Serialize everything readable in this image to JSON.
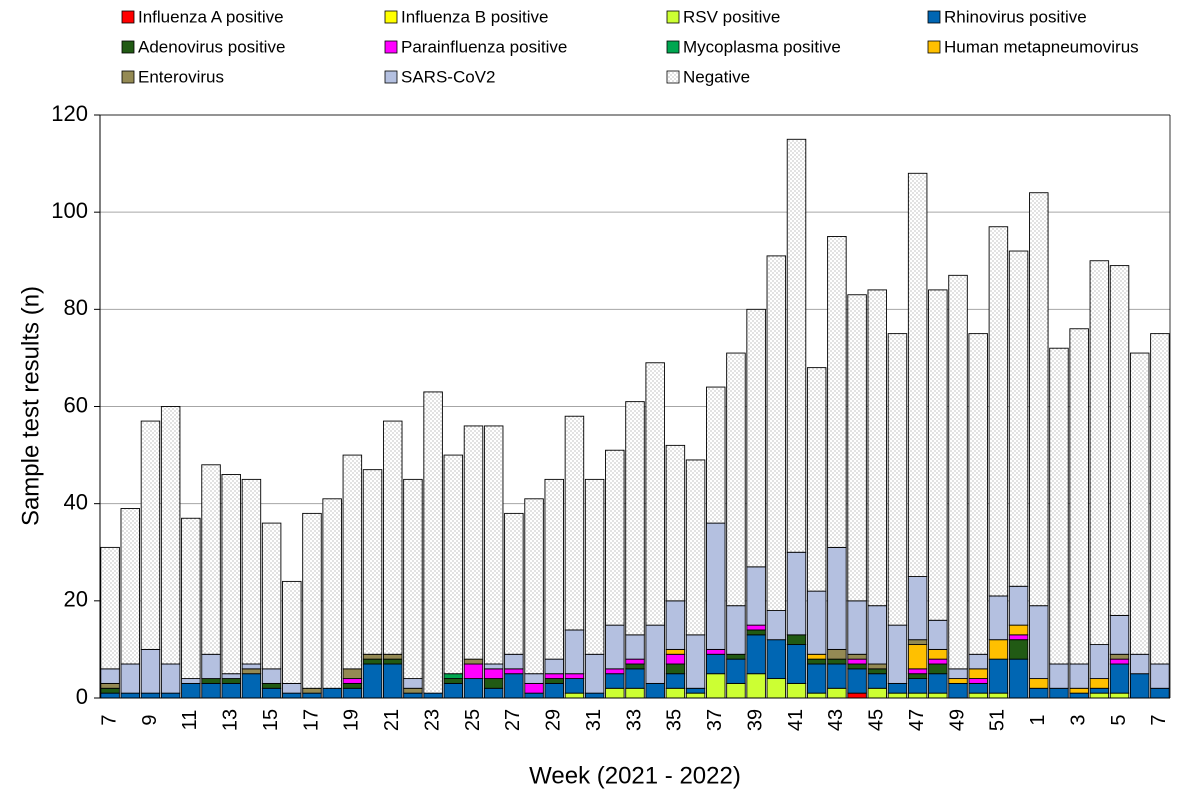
{
  "chart_data": {
    "type": "stacked_bar",
    "x_label": "Week (2021 - 2022)",
    "y_label": "Sample test results (n)",
    "categories": [
      "7",
      null,
      "9",
      null,
      "11",
      null,
      "13",
      null,
      "15",
      null,
      "17",
      null,
      "19",
      null,
      "21",
      null,
      "23",
      null,
      "25",
      null,
      "27",
      null,
      "29",
      null,
      "31",
      null,
      "33",
      null,
      "35",
      null,
      "37",
      null,
      "39",
      null,
      "41",
      null,
      "43",
      null,
      "45",
      null,
      "47",
      null,
      "49",
      null,
      "51",
      null,
      "1",
      null,
      "3",
      null,
      "5",
      null,
      "7"
    ],
    "ylim": [
      0,
      120
    ],
    "yticks": [
      0,
      20,
      40,
      60,
      80,
      100,
      120
    ],
    "grid": true,
    "series": [
      {
        "name": "Influenza A positive",
        "color": "#ff0000",
        "values": [
          0,
          0,
          0,
          0,
          0,
          0,
          0,
          0,
          0,
          0,
          0,
          0,
          0,
          0,
          0,
          0,
          0,
          0,
          0,
          0,
          0,
          0,
          0,
          0,
          0,
          0,
          0,
          0,
          0,
          0,
          0,
          0,
          0,
          0,
          0,
          0,
          0,
          1,
          0,
          0,
          0,
          0,
          0,
          0,
          0,
          0,
          0,
          0,
          0,
          0,
          0,
          0,
          0
        ]
      },
      {
        "name": "Influenza B positive",
        "color": "#ffff00",
        "values": [
          0,
          0,
          0,
          0,
          0,
          0,
          0,
          0,
          0,
          0,
          0,
          0,
          0,
          0,
          0,
          0,
          0,
          0,
          0,
          0,
          0,
          0,
          0,
          0,
          0,
          0,
          0,
          0,
          0,
          0,
          0,
          0,
          0,
          0,
          0,
          0,
          0,
          0,
          0,
          0,
          0,
          0,
          0,
          0,
          0,
          0,
          0,
          0,
          0,
          0,
          0,
          0,
          0
        ]
      },
      {
        "name": "RSV positive",
        "color": "#ccff33",
        "values": [
          0,
          0,
          0,
          0,
          0,
          0,
          0,
          0,
          0,
          0,
          0,
          0,
          0,
          0,
          0,
          0,
          0,
          0,
          0,
          0,
          0,
          0,
          0,
          1,
          0,
          2,
          2,
          0,
          2,
          1,
          5,
          3,
          5,
          4,
          3,
          1,
          2,
          0,
          2,
          1,
          1,
          1,
          0,
          1,
          1,
          0,
          0,
          0,
          0,
          1,
          1,
          0,
          0
        ]
      },
      {
        "name": "Rhinovirus positive",
        "color": "#0066b3",
        "values": [
          1,
          1,
          1,
          1,
          3,
          3,
          3,
          5,
          2,
          1,
          1,
          2,
          2,
          7,
          7,
          1,
          1,
          3,
          4,
          2,
          5,
          1,
          3,
          3,
          1,
          3,
          4,
          3,
          3,
          1,
          4,
          5,
          8,
          8,
          8,
          6,
          5,
          5,
          3,
          2,
          3,
          4,
          3,
          2,
          7,
          8,
          2,
          2,
          1,
          1,
          6,
          5,
          2
        ]
      },
      {
        "name": "Adenovirus positive",
        "color": "#215a14",
        "values": [
          1,
          0,
          0,
          0,
          0,
          1,
          1,
          0,
          1,
          0,
          0,
          0,
          1,
          1,
          1,
          0,
          0,
          1,
          0,
          2,
          0,
          0,
          1,
          0,
          0,
          0,
          1,
          0,
          2,
          0,
          0,
          1,
          1,
          0,
          2,
          1,
          1,
          1,
          1,
          0,
          1,
          2,
          0,
          0,
          0,
          4,
          0,
          0,
          0,
          0,
          0,
          0,
          0
        ]
      },
      {
        "name": "Parainfluenza positive",
        "color": "#ff00ff",
        "values": [
          0,
          0,
          0,
          0,
          0,
          0,
          0,
          0,
          0,
          0,
          0,
          0,
          1,
          0,
          0,
          0,
          0,
          0,
          3,
          2,
          1,
          2,
          1,
          1,
          0,
          1,
          1,
          0,
          2,
          0,
          1,
          0,
          1,
          0,
          0,
          0,
          0,
          1,
          0,
          0,
          1,
          1,
          0,
          1,
          0,
          1,
          0,
          0,
          0,
          0,
          1,
          0,
          0
        ]
      },
      {
        "name": "Mycoplasma positive",
        "color": "#00a650",
        "values": [
          0,
          0,
          0,
          0,
          0,
          0,
          0,
          0,
          0,
          0,
          0,
          0,
          0,
          0,
          0,
          0,
          0,
          1,
          0,
          0,
          0,
          0,
          0,
          0,
          0,
          0,
          0,
          0,
          0,
          0,
          0,
          0,
          0,
          0,
          0,
          0,
          0,
          0,
          0,
          0,
          0,
          0,
          0,
          0,
          0,
          0,
          0,
          0,
          0,
          0,
          0,
          0,
          0
        ]
      },
      {
        "name": "Human metapneumovirus",
        "color": "#ffc000",
        "values": [
          0,
          0,
          0,
          0,
          0,
          0,
          0,
          0,
          0,
          0,
          0,
          0,
          0,
          0,
          0,
          0,
          0,
          0,
          0,
          0,
          0,
          0,
          0,
          0,
          0,
          0,
          0,
          0,
          1,
          0,
          0,
          0,
          0,
          0,
          0,
          1,
          0,
          0,
          0,
          0,
          5,
          2,
          1,
          2,
          4,
          2,
          2,
          0,
          1,
          2,
          0,
          0,
          0
        ]
      },
      {
        "name": "Enterovirus",
        "color": "#948a54",
        "values": [
          1,
          0,
          0,
          0,
          0,
          0,
          0,
          1,
          0,
          0,
          1,
          0,
          2,
          1,
          1,
          1,
          0,
          0,
          1,
          0,
          0,
          0,
          0,
          0,
          0,
          0,
          0,
          0,
          0,
          0,
          0,
          0,
          0,
          0,
          0,
          0,
          2,
          1,
          1,
          0,
          1,
          0,
          0,
          0,
          0,
          0,
          0,
          0,
          0,
          0,
          1,
          0,
          0
        ]
      },
      {
        "name": "SARS-CoV2",
        "color": "#b4c0e0",
        "values": [
          3,
          6,
          9,
          6,
          1,
          5,
          1,
          1,
          3,
          2,
          0,
          0,
          0,
          0,
          0,
          2,
          0,
          0,
          0,
          1,
          3,
          2,
          3,
          9,
          8,
          9,
          5,
          12,
          10,
          11,
          26,
          10,
          12,
          6,
          17,
          13,
          21,
          11,
          12,
          12,
          13,
          6,
          2,
          3,
          9,
          8,
          15,
          5,
          5,
          7,
          8,
          4,
          5
        ]
      },
      {
        "name": "Negative",
        "color": "#ffffff",
        "pattern": "dotted",
        "values": [
          25,
          32,
          47,
          53,
          33,
          39,
          41,
          38,
          30,
          21,
          36,
          39,
          44,
          38,
          48,
          41,
          62,
          45,
          48,
          49,
          29,
          36,
          37,
          44,
          36,
          36,
          48,
          54,
          32,
          36,
          28,
          52,
          53,
          73,
          85,
          46,
          64,
          63,
          65,
          60,
          83,
          68,
          81,
          66,
          76,
          69,
          85,
          65,
          69,
          79,
          72,
          62,
          68
        ]
      }
    ]
  }
}
